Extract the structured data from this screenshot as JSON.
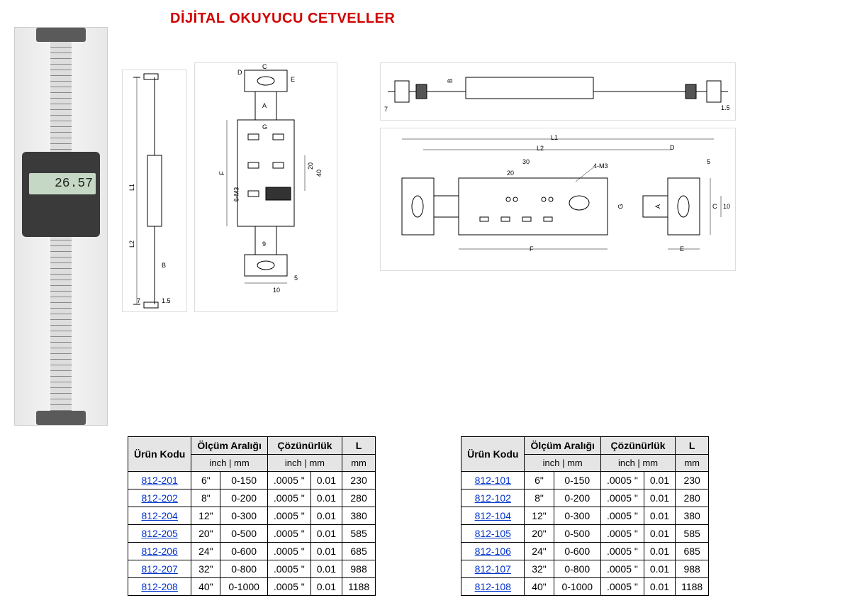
{
  "title": "DİJİTAL OKUYUCU CETVELLER",
  "lcd_reading": "26.57",
  "header": {
    "col_product": "Ürün Kodu",
    "col_range": "Ölçüm Aralığı",
    "col_resolution": "Çözünürlük",
    "col_L": "L",
    "sub_inch": "inch",
    "sub_mm": "mm",
    "sep": " | "
  },
  "diagram_labels": {
    "L1": "L1",
    "L2": "L2",
    "A": "A",
    "B": "B",
    "C": "C",
    "D": "D",
    "E": "E",
    "F": "F",
    "G": "G",
    "4M3": "4-M3",
    "6M3": "6-M3",
    "d7": "7",
    "d1_5": "1.5",
    "d10": "10",
    "d5": "5",
    "d9": "9",
    "d20": "20",
    "d30": "30",
    "d40": "40"
  },
  "table_left": {
    "rows": [
      {
        "code": "812-201",
        "inch": "6\"",
        "mm": "0-150",
        "res_in": ".0005 \"",
        "res_mm": "0.01",
        "L": "230"
      },
      {
        "code": "812-202",
        "inch": "8\"",
        "mm": "0-200",
        "res_in": ".0005 \"",
        "res_mm": "0.01",
        "L": "280"
      },
      {
        "code": "812-204",
        "inch": "12\"",
        "mm": "0-300",
        "res_in": ".0005 \"",
        "res_mm": "0.01",
        "L": "380"
      },
      {
        "code": "812-205",
        "inch": "20\"",
        "mm": "0-500",
        "res_in": ".0005 \"",
        "res_mm": "0.01",
        "L": "585"
      },
      {
        "code": "812-206",
        "inch": "24\"",
        "mm": "0-600",
        "res_in": ".0005 \"",
        "res_mm": "0.01",
        "L": "685"
      },
      {
        "code": "812-207",
        "inch": "32\"",
        "mm": "0-800",
        "res_in": ".0005 \"",
        "res_mm": "0.01",
        "L": "988"
      },
      {
        "code": "812-208",
        "inch": "40\"",
        "mm": "0-1000",
        "res_in": ".0005 \"",
        "res_mm": "0.01",
        "L": "1188"
      }
    ]
  },
  "table_right": {
    "rows": [
      {
        "code": "812-101",
        "inch": "6\"",
        "mm": "0-150",
        "res_in": ".0005 \"",
        "res_mm": "0.01",
        "L": "230"
      },
      {
        "code": "812-102",
        "inch": "8\"",
        "mm": "0-200",
        "res_in": ".0005 \"",
        "res_mm": "0.01",
        "L": "280"
      },
      {
        "code": "812-104",
        "inch": "12\"",
        "mm": "0-300",
        "res_in": ".0005 \"",
        "res_mm": "0.01",
        "L": "380"
      },
      {
        "code": "812-105",
        "inch": "20\"",
        "mm": "0-500",
        "res_in": ".0005 \"",
        "res_mm": "0.01",
        "L": "585"
      },
      {
        "code": "812-106",
        "inch": "24\"",
        "mm": "0-600",
        "res_in": ".0005 \"",
        "res_mm": "0.01",
        "L": "685"
      },
      {
        "code": "812-107",
        "inch": "32\"",
        "mm": "0-800",
        "res_in": ".0005 \"",
        "res_mm": "0.01",
        "L": "988"
      },
      {
        "code": "812-108",
        "inch": "40\"",
        "mm": "0-1000",
        "res_in": ".0005 \"",
        "res_mm": "0.01",
        "L": "1188"
      }
    ]
  },
  "styling": {
    "title_color": "#d10000",
    "title_fontsize": 20,
    "link_color": "#0033cc",
    "header_bg": "#e5e5e5",
    "border_color": "#000000",
    "body_bg": "#ffffff",
    "cell_fontsize": 14
  }
}
